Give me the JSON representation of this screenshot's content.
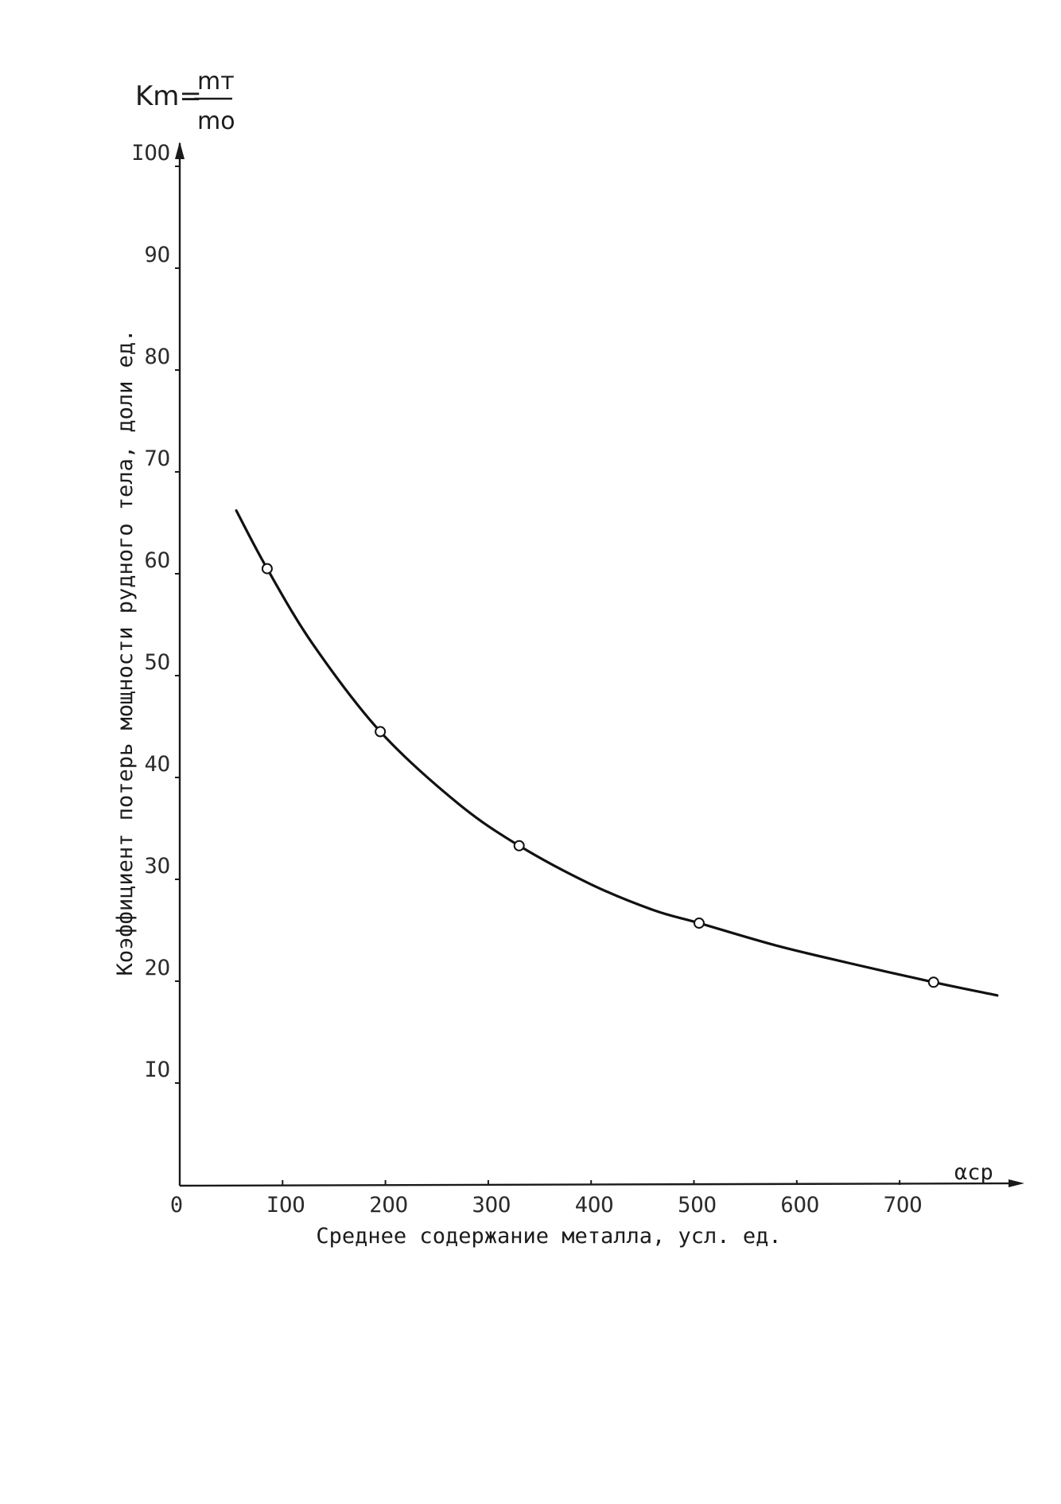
{
  "chart_data": {
    "type": "line",
    "title": "",
    "formula": {
      "lhs": "Km=",
      "numerator": "mт",
      "denominator": "mo"
    },
    "xlabel": "Среднее содержание металла, усл. ед.",
    "ylabel": "Коэффициент потерь мощности рудного тела, доли ед.",
    "x_axis_symbol": "αср",
    "xlim": [
      0,
      800
    ],
    "ylim": [
      0,
      100
    ],
    "x_ticks": [
      0,
      100,
      200,
      300,
      400,
      500,
      600,
      700
    ],
    "x_tick_labels": [
      "0",
      "IOO",
      "2OO",
      "3OO",
      "4OO",
      "5OO",
      "6OO",
      "7OO"
    ],
    "y_ticks": [
      10,
      20,
      30,
      40,
      50,
      60,
      70,
      80,
      90,
      100
    ],
    "y_tick_labels": [
      "IO",
      "2O",
      "3O",
      "4O",
      "5O",
      "6O",
      "7O",
      "8O",
      "9O",
      "IOO"
    ],
    "grid": false,
    "legend": "none",
    "series": [
      {
        "values_x": [
          55,
          85,
          130,
          195,
          270,
          330,
          400,
          460,
          505,
          580,
          650,
          733,
          795
        ],
        "values_y": [
          66.2,
          60.5,
          53.0,
          44.5,
          37.5,
          33.3,
          29.5,
          27.0,
          25.7,
          23.5,
          21.8,
          19.9,
          18.6
        ],
        "style": "smooth"
      }
    ],
    "points": [
      {
        "x": 85,
        "y": 60.5
      },
      {
        "x": 195,
        "y": 44.5
      },
      {
        "x": 330,
        "y": 33.3
      },
      {
        "x": 505,
        "y": 25.7
      },
      {
        "x": 733,
        "y": 19.9
      }
    ]
  }
}
